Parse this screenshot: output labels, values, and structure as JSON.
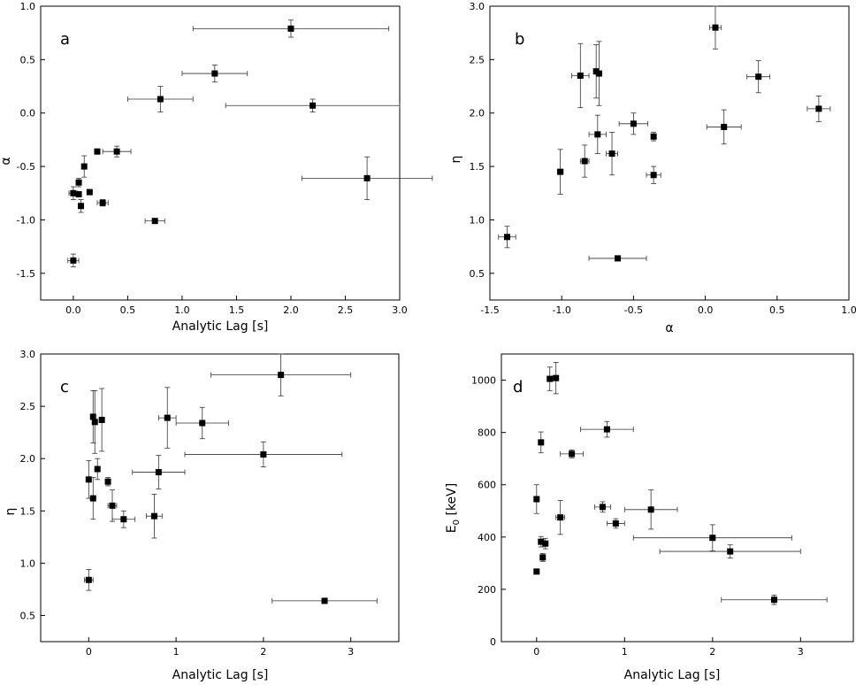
{
  "chart_data": [
    {
      "type": "scatter",
      "panel_label": "a",
      "xlabel": "Analytic  Lag [s]",
      "ylabel": "α",
      "xlim": [
        -0.3,
        3.0
      ],
      "ylim": [
        -1.75,
        1.0
      ],
      "xticks": [
        0.0,
        0.5,
        1.0,
        1.5,
        2.0,
        2.5,
        3.0
      ],
      "xtick_labels": [
        "0.0",
        "0.5",
        "1.0",
        "1.5",
        "2.0",
        "2.5",
        "3.0"
      ],
      "yticks": [
        -1.5,
        -1.0,
        -0.5,
        0.0,
        0.5,
        1.0
      ],
      "ytick_labels": [
        "-1.5",
        "-1.0",
        "-0.5",
        "0.0",
        "0.5",
        "1.0"
      ],
      "points": [
        {
          "x": 2.0,
          "y": 0.79,
          "xerr": [
            0.9,
            0.9
          ],
          "yerr": [
            0.08,
            0.08
          ]
        },
        {
          "x": 1.3,
          "y": 0.37,
          "xerr": [
            0.3,
            0.3
          ],
          "yerr": [
            0.08,
            0.08
          ]
        },
        {
          "x": 0.8,
          "y": 0.13,
          "xerr": [
            0.3,
            0.3
          ],
          "yerr": [
            0.12,
            0.12
          ]
        },
        {
          "x": 2.2,
          "y": 0.07,
          "xerr": [
            0.8,
            0.8
          ],
          "yerr": [
            0.06,
            0.06
          ]
        },
        {
          "x": 0.22,
          "y": -0.36,
          "xerr": [
            0.0,
            0.0
          ],
          "yerr": [
            0.0,
            0.0
          ]
        },
        {
          "x": 0.4,
          "y": -0.36,
          "xerr": [
            0.13,
            0.13
          ],
          "yerr": [
            0.05,
            0.05
          ]
        },
        {
          "x": 0.1,
          "y": -0.5,
          "xerr": [
            0.0,
            0.0
          ],
          "yerr": [
            0.1,
            0.1
          ]
        },
        {
          "x": 2.7,
          "y": -0.61,
          "xerr": [
            0.6,
            0.6
          ],
          "yerr": [
            0.2,
            0.2
          ]
        },
        {
          "x": 0.05,
          "y": -0.65,
          "xerr": [
            0.0,
            0.0
          ],
          "yerr": [
            0.04,
            0.04
          ]
        },
        {
          "x": 0.15,
          "y": -0.74,
          "xerr": [
            0.0,
            0.0
          ],
          "yerr": [
            0.0,
            0.0
          ]
        },
        {
          "x": 0.0,
          "y": -0.75,
          "xerr": [
            0.04,
            0.04
          ],
          "yerr": [
            0.06,
            0.06
          ]
        },
        {
          "x": 0.05,
          "y": -0.76,
          "xerr": [
            0.0,
            0.0
          ],
          "yerr": [
            0.0,
            0.0
          ]
        },
        {
          "x": 0.27,
          "y": -0.84,
          "xerr": [
            0.05,
            0.05
          ],
          "yerr": [
            0.03,
            0.03
          ]
        },
        {
          "x": 0.07,
          "y": -0.87,
          "xerr": [
            0.0,
            0.0
          ],
          "yerr": [
            0.06,
            0.06
          ]
        },
        {
          "x": 0.75,
          "y": -1.01,
          "xerr": [
            0.09,
            0.09
          ],
          "yerr": [
            0.02,
            0.02
          ]
        },
        {
          "x": 0.0,
          "y": -1.38,
          "xerr": [
            0.05,
            0.05
          ],
          "yerr": [
            0.06,
            0.06
          ]
        }
      ]
    },
    {
      "type": "scatter",
      "panel_label": "b",
      "xlabel": "α",
      "ylabel": "η",
      "xlim": [
        -1.5,
        1.0
      ],
      "ylim": [
        0.25,
        3.0
      ],
      "xticks": [
        -1.5,
        -1.0,
        -0.5,
        0.0,
        0.5,
        1.0
      ],
      "xtick_labels": [
        "-1.5",
        "-1.0",
        "-0.5",
        "0.0",
        "0.5",
        "1.0"
      ],
      "yticks": [
        0.5,
        1.0,
        1.5,
        2.0,
        2.5,
        3.0
      ],
      "ytick_labels": [
        "0.5",
        "1.0",
        "1.5",
        "2.0",
        "2.5",
        "3.0"
      ],
      "points": [
        {
          "x": 0.07,
          "y": 2.8,
          "xerr": [
            0.04,
            0.04
          ],
          "yerr": [
            0.2,
            0.2
          ]
        },
        {
          "x": -0.87,
          "y": 2.35,
          "xerr": [
            0.06,
            0.06
          ],
          "yerr": [
            0.3,
            0.3
          ]
        },
        {
          "x": -0.76,
          "y": 2.39,
          "xerr": [
            0.0,
            0.0
          ],
          "yerr": [
            0.25,
            0.25
          ]
        },
        {
          "x": -0.74,
          "y": 2.37,
          "xerr": [
            0.0,
            0.0
          ],
          "yerr": [
            0.3,
            0.3
          ]
        },
        {
          "x": 0.37,
          "y": 2.34,
          "xerr": [
            0.08,
            0.08
          ],
          "yerr": [
            0.15,
            0.15
          ]
        },
        {
          "x": 0.79,
          "y": 2.04,
          "xerr": [
            0.08,
            0.08
          ],
          "yerr": [
            0.12,
            0.12
          ]
        },
        {
          "x": -0.5,
          "y": 1.9,
          "xerr": [
            0.1,
            0.1
          ],
          "yerr": [
            0.1,
            0.1
          ]
        },
        {
          "x": 0.13,
          "y": 1.87,
          "xerr": [
            0.12,
            0.12
          ],
          "yerr": [
            0.16,
            0.16
          ]
        },
        {
          "x": -0.75,
          "y": 1.8,
          "xerr": [
            0.06,
            0.06
          ],
          "yerr": [
            0.18,
            0.18
          ]
        },
        {
          "x": -0.36,
          "y": 1.78,
          "xerr": [
            0.0,
            0.0
          ],
          "yerr": [
            0.04,
            0.04
          ]
        },
        {
          "x": -0.65,
          "y": 1.62,
          "xerr": [
            0.04,
            0.04
          ],
          "yerr": [
            0.2,
            0.2
          ]
        },
        {
          "x": -0.84,
          "y": 1.55,
          "xerr": [
            0.03,
            0.03
          ],
          "yerr": [
            0.15,
            0.15
          ]
        },
        {
          "x": -1.01,
          "y": 1.45,
          "xerr": [
            0.02,
            0.02
          ],
          "yerr": [
            0.21,
            0.21
          ]
        },
        {
          "x": -0.36,
          "y": 1.42,
          "xerr": [
            0.05,
            0.05
          ],
          "yerr": [
            0.08,
            0.08
          ]
        },
        {
          "x": -1.38,
          "y": 0.84,
          "xerr": [
            0.06,
            0.06
          ],
          "yerr": [
            0.1,
            0.1
          ]
        },
        {
          "x": -0.61,
          "y": 0.64,
          "xerr": [
            0.2,
            0.2
          ],
          "yerr": [
            0.0,
            0.0
          ]
        }
      ]
    },
    {
      "type": "scatter",
      "panel_label": "c",
      "xlabel": "Analytic Lag [s]",
      "ylabel": "η",
      "xlim": [
        -0.55,
        3.55
      ],
      "ylim": [
        0.25,
        3.0
      ],
      "xticks": [
        0,
        1,
        2,
        3
      ],
      "xtick_labels": [
        "0",
        "1",
        "2",
        "3"
      ],
      "yticks": [
        0.5,
        1.0,
        1.5,
        2.0,
        2.5,
        3.0
      ],
      "ytick_labels": [
        "0.5",
        "1.0",
        "1.5",
        "2.0",
        "2.5",
        "3.0"
      ],
      "points": [
        {
          "x": 2.2,
          "y": 2.8,
          "xerr": [
            0.8,
            0.8
          ],
          "yerr": [
            0.2,
            0.2
          ]
        },
        {
          "x": 0.05,
          "y": 2.4,
          "xerr": [
            0.0,
            0.0
          ],
          "yerr": [
            0.25,
            0.25
          ]
        },
        {
          "x": 0.9,
          "y": 2.39,
          "xerr": [
            0.1,
            0.1
          ],
          "yerr": [
            0.29,
            0.29
          ]
        },
        {
          "x": 0.15,
          "y": 2.37,
          "xerr": [
            0.0,
            0.0
          ],
          "yerr": [
            0.3,
            0.3
          ]
        },
        {
          "x": 0.07,
          "y": 2.35,
          "xerr": [
            0.0,
            0.0
          ],
          "yerr": [
            0.3,
            0.3
          ]
        },
        {
          "x": 1.3,
          "y": 2.34,
          "xerr": [
            0.3,
            0.3
          ],
          "yerr": [
            0.15,
            0.15
          ]
        },
        {
          "x": 2.0,
          "y": 2.04,
          "xerr": [
            0.9,
            0.9
          ],
          "yerr": [
            0.12,
            0.12
          ]
        },
        {
          "x": 0.1,
          "y": 1.9,
          "xerr": [
            0.0,
            0.0
          ],
          "yerr": [
            0.1,
            0.1
          ]
        },
        {
          "x": 0.8,
          "y": 1.87,
          "xerr": [
            0.3,
            0.3
          ],
          "yerr": [
            0.16,
            0.16
          ]
        },
        {
          "x": 0.0,
          "y": 1.8,
          "xerr": [
            0.0,
            0.0
          ],
          "yerr": [
            0.18,
            0.18
          ]
        },
        {
          "x": 0.22,
          "y": 1.78,
          "xerr": [
            0.0,
            0.0
          ],
          "yerr": [
            0.04,
            0.04
          ]
        },
        {
          "x": 0.05,
          "y": 1.62,
          "xerr": [
            0.0,
            0.0
          ],
          "yerr": [
            0.2,
            0.2
          ]
        },
        {
          "x": 0.27,
          "y": 1.55,
          "xerr": [
            0.05,
            0.05
          ],
          "yerr": [
            0.15,
            0.15
          ]
        },
        {
          "x": 0.75,
          "y": 1.45,
          "xerr": [
            0.09,
            0.09
          ],
          "yerr": [
            0.21,
            0.21
          ]
        },
        {
          "x": 0.4,
          "y": 1.42,
          "xerr": [
            0.13,
            0.13
          ],
          "yerr": [
            0.08,
            0.08
          ]
        },
        {
          "x": 0.0,
          "y": 0.84,
          "xerr": [
            0.05,
            0.05
          ],
          "yerr": [
            0.1,
            0.1
          ]
        },
        {
          "x": 2.7,
          "y": 0.64,
          "xerr": [
            0.6,
            0.6
          ],
          "yerr": [
            0.0,
            0.0
          ]
        }
      ]
    },
    {
      "type": "scatter",
      "panel_label": "d",
      "xlabel": "Analytic Lag [s]",
      "ylabel": "E",
      "ylabel_sub": "0",
      "ylabel_tail": " [keV]",
      "xlim": [
        -0.4,
        3.6
      ],
      "ylim": [
        0,
        1100
      ],
      "xticks": [
        0,
        1,
        2,
        3
      ],
      "xtick_labels": [
        "0",
        "1",
        "2",
        "3"
      ],
      "yticks": [
        0,
        200,
        400,
        600,
        800,
        1000
      ],
      "ytick_labels": [
        "0",
        "200",
        "400",
        "600",
        "800",
        "1000"
      ],
      "points": [
        {
          "x": 0.15,
          "y": 1005,
          "xerr": [
            0.0,
            0.0
          ],
          "yerr": [
            45,
            45
          ]
        },
        {
          "x": 0.22,
          "y": 1008,
          "xerr": [
            0.0,
            0.0
          ],
          "yerr": [
            60,
            60
          ]
        },
        {
          "x": 0.8,
          "y": 812,
          "xerr": [
            0.3,
            0.3
          ],
          "yerr": [
            30,
            30
          ]
        },
        {
          "x": 0.05,
          "y": 762,
          "xerr": [
            0.0,
            0.0
          ],
          "yerr": [
            40,
            40
          ]
        },
        {
          "x": 0.4,
          "y": 718,
          "xerr": [
            0.13,
            0.13
          ],
          "yerr": [
            15,
            15
          ]
        },
        {
          "x": 0.0,
          "y": 545,
          "xerr": [
            0.0,
            0.0
          ],
          "yerr": [
            55,
            55
          ]
        },
        {
          "x": 0.75,
          "y": 515,
          "xerr": [
            0.09,
            0.09
          ],
          "yerr": [
            20,
            20
          ]
        },
        {
          "x": 1.3,
          "y": 505,
          "xerr": [
            0.3,
            0.3
          ],
          "yerr": [
            75,
            75
          ]
        },
        {
          "x": 0.27,
          "y": 475,
          "xerr": [
            0.05,
            0.05
          ],
          "yerr": [
            65,
            65
          ]
        },
        {
          "x": 0.9,
          "y": 452,
          "xerr": [
            0.1,
            0.1
          ],
          "yerr": [
            18,
            18
          ]
        },
        {
          "x": 2.0,
          "y": 397,
          "xerr": [
            0.9,
            0.9
          ],
          "yerr": [
            50,
            50
          ]
        },
        {
          "x": 0.05,
          "y": 382,
          "xerr": [
            0.0,
            0.0
          ],
          "yerr": [
            20,
            20
          ]
        },
        {
          "x": 0.1,
          "y": 375,
          "xerr": [
            0.0,
            0.0
          ],
          "yerr": [
            20,
            20
          ]
        },
        {
          "x": 2.2,
          "y": 345,
          "xerr": [
            0.8,
            0.8
          ],
          "yerr": [
            25,
            25
          ]
        },
        {
          "x": 0.07,
          "y": 322,
          "xerr": [
            0.0,
            0.0
          ],
          "yerr": [
            15,
            15
          ]
        },
        {
          "x": 0.0,
          "y": 268,
          "xerr": [
            0.0,
            0.0
          ],
          "yerr": [
            0,
            0
          ]
        },
        {
          "x": 2.7,
          "y": 160,
          "xerr": [
            0.6,
            0.6
          ],
          "yerr": [
            18,
            18
          ]
        }
      ]
    }
  ]
}
